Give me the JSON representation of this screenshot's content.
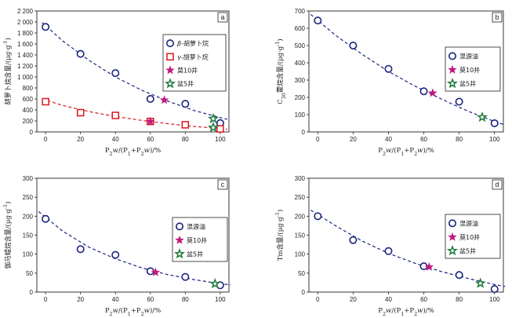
{
  "colors": {
    "navy": "#1a237e",
    "red": "#d71920",
    "magenta": "#c0187f",
    "green": "#1f7a3a"
  },
  "chart_data": [
    {
      "type": "scatter",
      "panel": "a",
      "xlabel": "P2w/(P1+P2w)/%",
      "ylabel": "胡萝卜烷含量/(μg·g-1)",
      "xlim": [
        -5,
        105
      ],
      "ylim": [
        0,
        2200
      ],
      "xticks": [
        0,
        20,
        40,
        60,
        80,
        100
      ],
      "yticks": [
        0,
        200,
        400,
        600,
        800,
        1000,
        1200,
        1400,
        1600,
        1800,
        2000,
        2200
      ],
      "yticklabels": [
        "0",
        "200",
        "400",
        "600",
        "800",
        "1 000",
        "1 200",
        "1 400",
        "1 600",
        "1 800",
        "2 000",
        "2 200"
      ],
      "legend": [
        {
          "label": "β-胡萝卜烷",
          "marker": "circle",
          "color": "#1a237e"
        },
        {
          "label": "γ-胡萝卜烷",
          "marker": "square",
          "color": "#d71920"
        },
        {
          "label": "莫10井",
          "marker": "star",
          "color": "#c0187f"
        },
        {
          "label": "盆5井",
          "marker": "hollowstar",
          "color": "#1f7a3a"
        }
      ],
      "series": [
        {
          "name": "β-胡萝卜烷",
          "marker": "circle",
          "color": "#1a237e",
          "points": [
            [
              0,
              1910
            ],
            [
              20,
              1420
            ],
            [
              40,
              1070
            ],
            [
              60,
              600
            ],
            [
              80,
              510
            ],
            [
              100,
              160
            ]
          ],
          "fit": [
            [
              -2,
              1990
            ],
            [
              10,
              1650
            ],
            [
              25,
              1300
            ],
            [
              40,
              1000
            ],
            [
              55,
              760
            ],
            [
              70,
              560
            ],
            [
              85,
              390
            ],
            [
              100,
              260
            ],
            [
              104,
              230
            ]
          ]
        },
        {
          "name": "γ-胡萝卜烷",
          "marker": "square",
          "color": "#d71920",
          "points": [
            [
              0,
              550
            ],
            [
              20,
              350
            ],
            [
              40,
              300
            ],
            [
              60,
              190
            ],
            [
              80,
              130
            ],
            [
              100,
              55
            ]
          ],
          "fit": [
            [
              -2,
              600
            ],
            [
              10,
              480
            ],
            [
              25,
              370
            ],
            [
              40,
              280
            ],
            [
              55,
              210
            ],
            [
              70,
              150
            ],
            [
              85,
              100
            ],
            [
              100,
              60
            ],
            [
              104,
              50
            ]
          ]
        },
        {
          "name": "莫10井",
          "marker": "star",
          "color": "#c0187f",
          "points": [
            [
              68,
              580
            ],
            [
              60,
              190
            ]
          ]
        },
        {
          "name": "盆5井",
          "marker": "hollowstar",
          "color": "#1f7a3a",
          "points": [
            [
              96,
              240
            ],
            [
              96,
              80
            ]
          ]
        }
      ]
    },
    {
      "type": "scatter",
      "panel": "b",
      "xlabel": "P2w/(P1+P2w)/%",
      "ylabel": "C30藿烷含量/(μg·g-1)",
      "xlim": [
        -5,
        105
      ],
      "ylim": [
        0,
        700
      ],
      "xticks": [
        0,
        20,
        40,
        60,
        80,
        100
      ],
      "yticks": [
        0,
        100,
        200,
        300,
        400,
        500,
        600,
        700
      ],
      "legend": [
        {
          "label": "混源油",
          "marker": "circle",
          "color": "#1a237e"
        },
        {
          "label": "莫10井",
          "marker": "star",
          "color": "#c0187f"
        },
        {
          "label": "盆5井",
          "marker": "hollowstar",
          "color": "#1f7a3a"
        }
      ],
      "series": [
        {
          "name": "混源油",
          "marker": "circle",
          "color": "#1a237e",
          "points": [
            [
              0,
              645
            ],
            [
              20,
              500
            ],
            [
              40,
              365
            ],
            [
              60,
              235
            ],
            [
              80,
              175
            ],
            [
              100,
              50
            ]
          ],
          "fit": [
            [
              -4,
              680
            ],
            [
              10,
              560
            ],
            [
              25,
              450
            ],
            [
              40,
              350
            ],
            [
              55,
              265
            ],
            [
              70,
              190
            ],
            [
              85,
              120
            ],
            [
              100,
              60
            ],
            [
              106,
              40
            ]
          ]
        },
        {
          "name": "莫10井",
          "marker": "star",
          "color": "#c0187f",
          "points": [
            [
              65,
              225
            ]
          ]
        },
        {
          "name": "盆5井",
          "marker": "hollowstar",
          "color": "#1f7a3a",
          "points": [
            [
              93,
              85
            ]
          ]
        }
      ]
    },
    {
      "type": "scatter",
      "panel": "c",
      "xlabel": "P2w/(P1+P2w)/%",
      "ylabel": "伽马蜡烷含量/(μg·g-1)",
      "xlim": [
        -5,
        105
      ],
      "ylim": [
        0,
        300
      ],
      "xticks": [
        0,
        20,
        40,
        60,
        80,
        100
      ],
      "yticks": [
        0,
        50,
        100,
        150,
        200,
        250,
        300
      ],
      "legend": [
        {
          "label": "混源油",
          "marker": "circle",
          "color": "#1a237e"
        },
        {
          "label": "莫10井",
          "marker": "star",
          "color": "#c0187f"
        },
        {
          "label": "盆5井",
          "marker": "hollowstar",
          "color": "#1f7a3a"
        }
      ],
      "series": [
        {
          "name": "混源油",
          "marker": "circle",
          "color": "#1a237e",
          "points": [
            [
              0,
              193
            ],
            [
              20,
              113
            ],
            [
              40,
              98
            ],
            [
              60,
              55
            ],
            [
              80,
              40
            ],
            [
              100,
              18
            ]
          ],
          "fit": [
            [
              -4,
              212
            ],
            [
              10,
              160
            ],
            [
              25,
              118
            ],
            [
              40,
              88
            ],
            [
              55,
              64
            ],
            [
              70,
              46
            ],
            [
              85,
              33
            ],
            [
              100,
              22
            ],
            [
              106,
              19
            ]
          ]
        },
        {
          "name": "莫10井",
          "marker": "star",
          "color": "#c0187f",
          "points": [
            [
              63,
              52
            ]
          ]
        },
        {
          "name": "盆5井",
          "marker": "hollowstar",
          "color": "#1f7a3a",
          "points": [
            [
              97,
              22
            ]
          ]
        }
      ]
    },
    {
      "type": "scatter",
      "panel": "d",
      "xlabel": "P2w/(P1+P2w)/%",
      "ylabel": "Tm含量/(μg·g-1)",
      "xlim": [
        -5,
        105
      ],
      "ylim": [
        0,
        300
      ],
      "xticks": [
        0,
        20,
        40,
        60,
        80,
        100
      ],
      "yticks": [
        0,
        50,
        100,
        150,
        200,
        250,
        300
      ],
      "legend": [
        {
          "label": "混源油",
          "marker": "circle",
          "color": "#1a237e"
        },
        {
          "label": "莫10井",
          "marker": "star",
          "color": "#c0187f"
        },
        {
          "label": "盆5井",
          "marker": "hollowstar",
          "color": "#1f7a3a"
        }
      ],
      "series": [
        {
          "name": "混源油",
          "marker": "circle",
          "color": "#1a237e",
          "points": [
            [
              0,
              200
            ],
            [
              20,
              137
            ],
            [
              40,
              108
            ],
            [
              60,
              68
            ],
            [
              80,
              45
            ],
            [
              100,
              8
            ]
          ],
          "fit": [
            [
              -4,
              216
            ],
            [
              10,
              175
            ],
            [
              25,
              135
            ],
            [
              40,
              102
            ],
            [
              55,
              76
            ],
            [
              70,
              54
            ],
            [
              85,
              36
            ],
            [
              100,
              20
            ],
            [
              106,
              15
            ]
          ]
        },
        {
          "name": "莫10井",
          "marker": "star",
          "color": "#c0187f",
          "points": [
            [
              63,
              66
            ]
          ]
        },
        {
          "name": "盆5井",
          "marker": "hollowstar",
          "color": "#1f7a3a",
          "points": [
            [
              92,
              23
            ]
          ]
        }
      ]
    }
  ]
}
